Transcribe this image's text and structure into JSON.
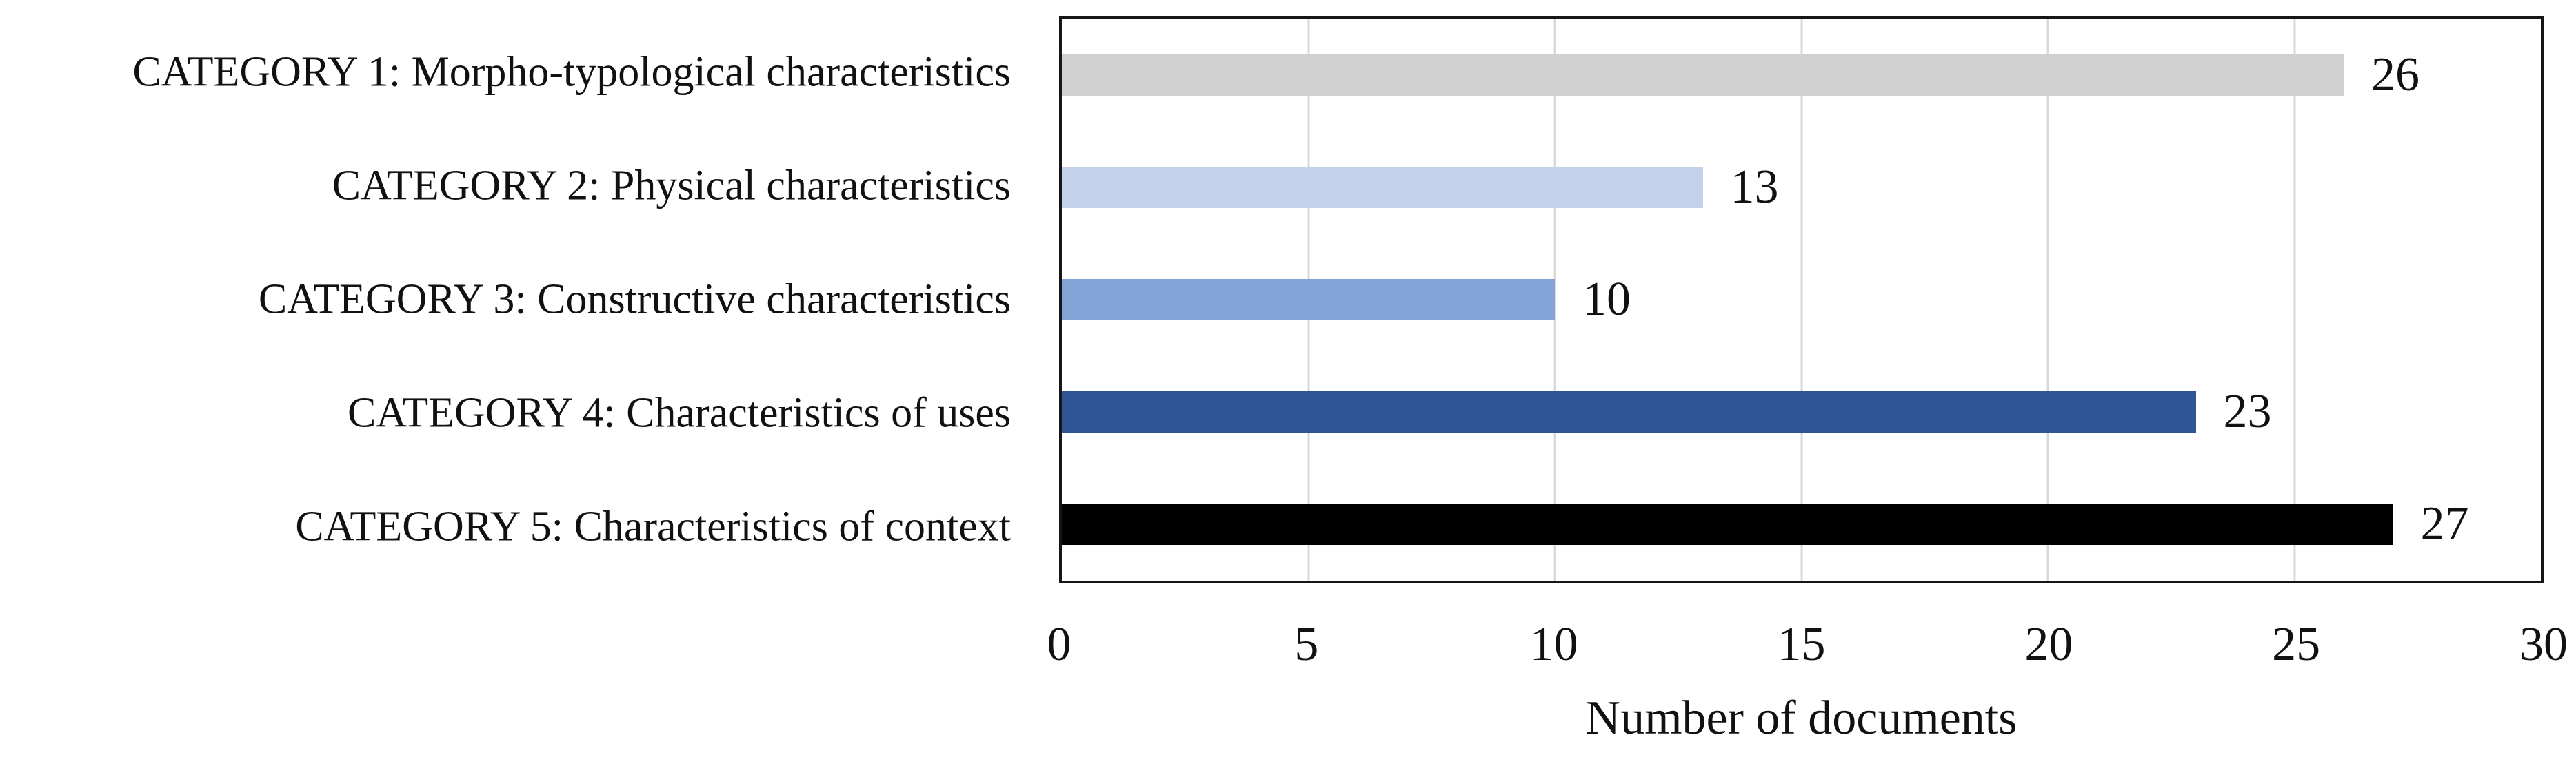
{
  "chart_data": {
    "type": "bar",
    "orientation": "horizontal",
    "title": "",
    "xlabel": "Number of documents",
    "ylabel": "",
    "categories": [
      "CATEGORY 1: Morpho-typological characteristics",
      "CATEGORY 2: Physical characteristics",
      "CATEGORY 3: Constructive characteristics",
      "CATEGORY 4: Characteristics of uses",
      "CATEGORY 5: Characteristics of context"
    ],
    "values": [
      26,
      13,
      10,
      23,
      27
    ],
    "value_labels": [
      "26",
      "13",
      "10",
      "23",
      "27"
    ],
    "bar_colors": [
      "#d0d0d0",
      "#c3d1ea",
      "#84a3d6",
      "#2e5496",
      "#000000"
    ],
    "xlim": [
      0,
      30
    ],
    "xticks": [
      0,
      5,
      10,
      15,
      20,
      25,
      30
    ],
    "grid": "vertical gridlines at x ticks",
    "legend": "none",
    "data_label_position": "outside end of bar"
  },
  "colors": {
    "background": "#ffffff",
    "plot_border": "#161616",
    "gridline": "#d9d9d9",
    "text": "#111111"
  }
}
